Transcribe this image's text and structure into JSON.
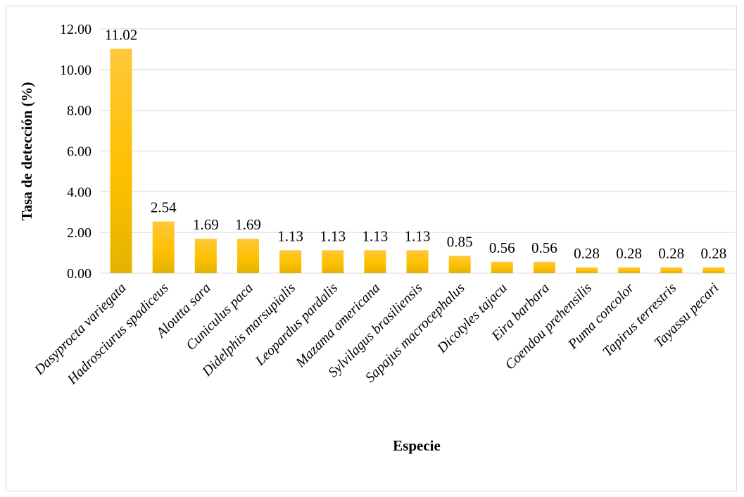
{
  "chart_data": {
    "type": "bar",
    "title": "",
    "xlabel": "Especie",
    "ylabel": "Tasa de detección (%)",
    "ylim": [
      0,
      12
    ],
    "yticks": [
      "0.00",
      "2.00",
      "4.00",
      "6.00",
      "8.00",
      "10.00",
      "12.00"
    ],
    "grid": true,
    "categories": [
      "Dasyprocta variegata",
      "Hadrosciurus spadiceus",
      "Aloutta sara",
      "Cuniculus paca",
      "Didelphis marsupialis",
      "Leopardus pardalis",
      "Mazama americana",
      "Sylvilagus brasiliensis",
      "Sapajus macrocephalus",
      "Dicotyles tajacu",
      "Eira barbara",
      "Coendou prehensilis",
      "Puma concolor",
      "Tapirus terrestris",
      "Tayassu pecari"
    ],
    "values": [
      11.02,
      2.54,
      1.69,
      1.69,
      1.13,
      1.13,
      1.13,
      1.13,
      0.85,
      0.56,
      0.56,
      0.28,
      0.28,
      0.28,
      0.28
    ],
    "data_labels": [
      "11.02",
      "2.54",
      "1.69",
      "1.69",
      "1.13",
      "1.13",
      "1.13",
      "1.13",
      "0.85",
      "0.56",
      "0.56",
      "0.28",
      "0.28",
      "0.28",
      "0.28"
    ],
    "colors": {
      "bar_top": "#ffc83a",
      "bar_mid": "#ffc000",
      "bar_bottom": "#e3b300",
      "grid": "#d9d9d9"
    }
  }
}
